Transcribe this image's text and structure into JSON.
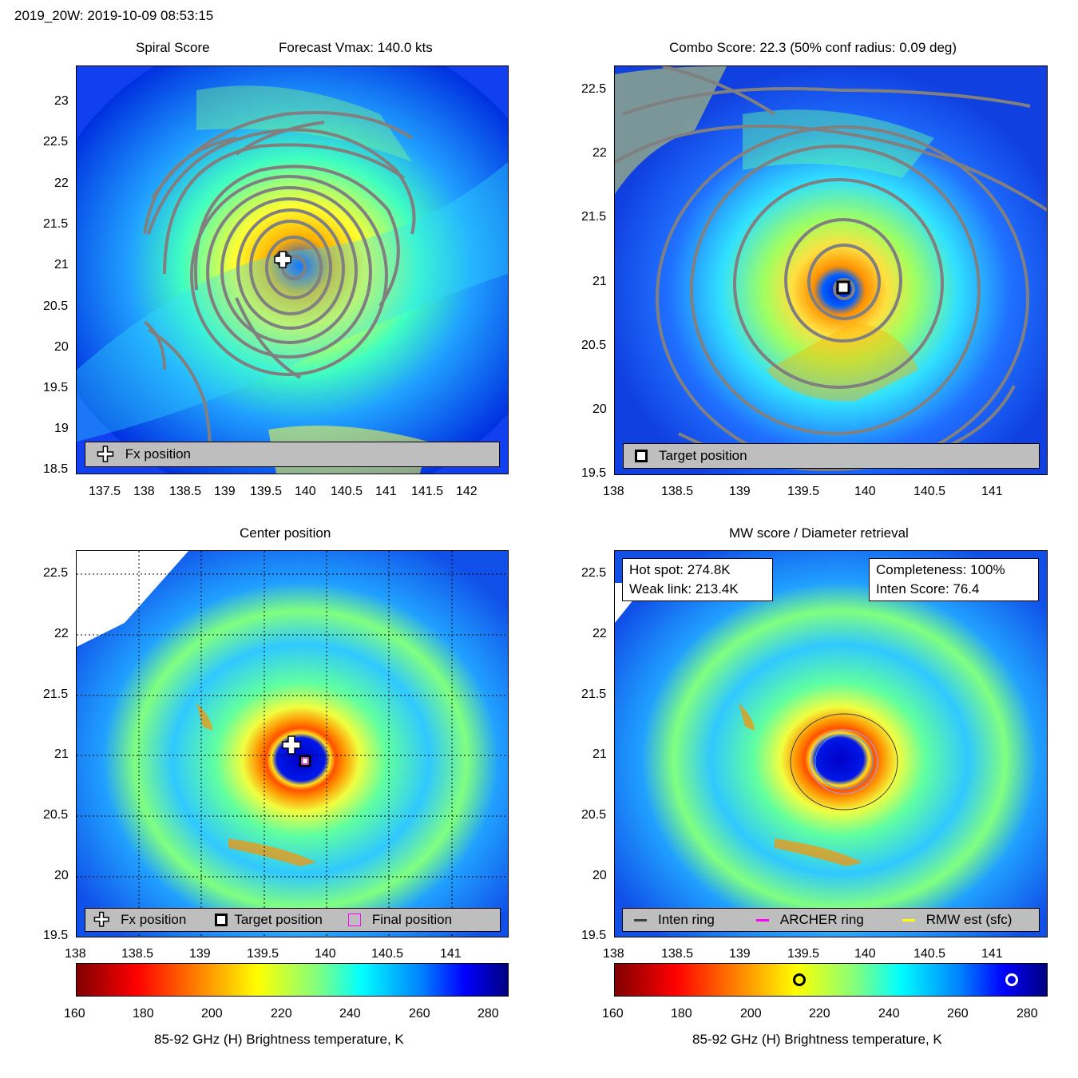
{
  "header": {
    "title": "2019_20W: 2019-10-09 08:53:15"
  },
  "panels": {
    "spiral": {
      "title_left": "Spiral Score",
      "title_right": "Forecast Vmax: 140.0 kts",
      "legend": {
        "fx_label": "Fx position"
      }
    },
    "combo": {
      "title": "Combo Score: 22.3  (50% conf radius: 0.09 deg)",
      "legend": {
        "target_label": "Target position"
      }
    },
    "center": {
      "title": "Center position",
      "legend": {
        "fx_label": "Fx position",
        "target_label": "Target position",
        "final_label": "Final position"
      }
    },
    "mw": {
      "title": "MW score / Diameter retrieval",
      "info_left": {
        "hot_spot": "Hot spot: 274.8K",
        "weak_link": "Weak link: 213.4K"
      },
      "info_right": {
        "completeness": "Completeness: 100%",
        "inten_score": "Inten Score: 76.4"
      },
      "legend": {
        "inten_ring": "Inten ring",
        "archer_ring": "ARCHER ring",
        "rmw_est": "RMW est (sfc)"
      }
    }
  },
  "colorbar": {
    "label": "85-92 GHz (H) Brightness temperature, K",
    "ticks": [
      "160",
      "180",
      "200",
      "220",
      "240",
      "260",
      "280"
    ],
    "range": [
      160,
      285
    ],
    "weak_link_value": 213.4,
    "hot_spot_value": 274.8
  },
  "axes": {
    "spiral": {
      "xticks": [
        "137.5",
        "138",
        "138.5",
        "139",
        "139.5",
        "140",
        "140.5",
        "141",
        "141.5",
        "142"
      ],
      "yticks": [
        "23",
        "22.5",
        "22",
        "21.5",
        "21",
        "20.5",
        "20",
        "19.5",
        "19",
        "18.5"
      ]
    },
    "combo": {
      "xticks": [
        "138",
        "138.5",
        "139",
        "139.5",
        "140",
        "140.5",
        "141"
      ],
      "yticks": [
        "22.5",
        "22",
        "21.5",
        "21",
        "20.5",
        "20",
        "19.5"
      ]
    },
    "center": {
      "xticks": [
        "138",
        "138.5",
        "139",
        "139.5",
        "140",
        "140.5",
        "141"
      ],
      "yticks": [
        "22.5",
        "22",
        "21.5",
        "21",
        "20.5",
        "20",
        "19.5"
      ]
    },
    "mw": {
      "xticks": [
        "138",
        "138.5",
        "139",
        "139.5",
        "140",
        "140.5",
        "141"
      ],
      "yticks": [
        "22.5",
        "22",
        "21.5",
        "21",
        "20.5",
        "20",
        "19.5"
      ]
    }
  },
  "chart_data": [
    {
      "type": "heatmap",
      "title": "Spiral Score",
      "x_range": [
        137.2,
        142.5
      ],
      "y_range": [
        18.45,
        23.4
      ],
      "fx_position": [
        139.7,
        21.1
      ],
      "colors": {
        "line": "#808080"
      }
    },
    {
      "type": "heatmap",
      "title": "Combo Score: 22.3  (50% conf radius: 0.09 deg)",
      "x_range": [
        138,
        141.45
      ],
      "y_range": [
        19.45,
        22.65
      ],
      "target_position": [
        139.8,
        20.95
      ]
    },
    {
      "type": "heatmap",
      "title": "Center position",
      "x_range": [
        138,
        141.45
      ],
      "y_range": [
        19.5,
        22.7
      ],
      "fx_position": [
        139.73,
        21.1
      ],
      "target_position": [
        139.83,
        20.95
      ],
      "grid": true
    },
    {
      "type": "heatmap",
      "title": "MW score / Diameter retrieval",
      "x_range": [
        138,
        141.45
      ],
      "y_range": [
        19.5,
        22.7
      ],
      "rings": [
        "Inten ring",
        "ARCHER ring",
        "RMW est (sfc)"
      ],
      "colors": {
        "inten_ring": "#404040",
        "archer_ring": "#ff00ff",
        "rmw_est": "#ffff00"
      }
    }
  ]
}
